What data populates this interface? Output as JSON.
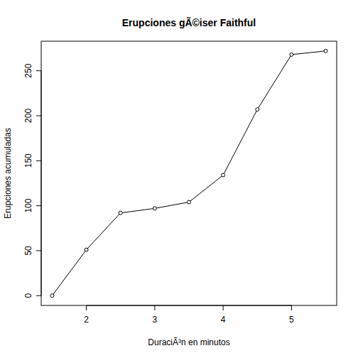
{
  "chart_data": {
    "type": "line",
    "title": "Erupciones gÃ©iser Faithful",
    "x_label": "DuraciÃ³n en minutos",
    "y_label": "Erupciones acumuladas",
    "x": [
      1.5,
      2,
      2.5,
      3,
      3.5,
      4,
      4.5,
      5,
      5.5
    ],
    "values": [
      0,
      51,
      92,
      97,
      104,
      134,
      207,
      268,
      272
    ],
    "xlim": [
      1.34,
      5.66
    ],
    "ylim": [
      -10.88,
      282.88
    ],
    "xticks": [
      2,
      3,
      4,
      5
    ],
    "yticks": [
      0,
      50,
      100,
      150,
      200,
      250
    ],
    "color": "#000000",
    "marker": "circle",
    "line_style": "solid",
    "grid": false
  }
}
